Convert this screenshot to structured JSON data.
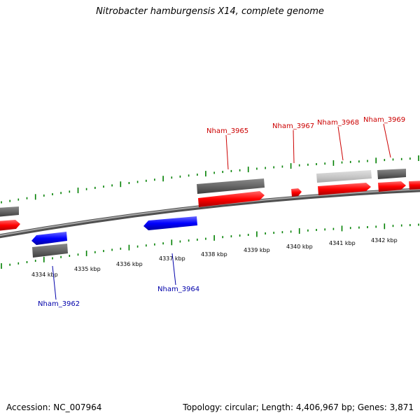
{
  "header": {
    "title": "Nitrobacter hamburgensis X14, complete genome"
  },
  "footer": {
    "accession_label": "Accession:",
    "accession": "NC_007964",
    "topology_label": "Topology:",
    "topology": "circular;",
    "length_label": "Length:",
    "length": "4,406,967 bp;",
    "genes_label": "Genes:",
    "genes": "3,871"
  },
  "colors": {
    "forward_gene": "#ff0000",
    "reverse_gene": "#0000ff",
    "forward_label": "#cc0000",
    "reverse_label": "#0000aa",
    "gray_feature": "#666666",
    "light_gray_feature": "#c8c8c8",
    "tick": "#008000",
    "backbone": "#808080"
  },
  "scale": {
    "ticks": [
      "4334 kbp",
      "4335 kbp",
      "4336 kbp",
      "4337 kbp",
      "4338 kbp",
      "4339 kbp",
      "4340 kbp",
      "4341 kbp",
      "4342 kbp"
    ]
  },
  "gene_labels": {
    "nham_3962": "Nham_3962",
    "nham_3964": "Nham_3964",
    "nham_3965": "Nham_3965",
    "nham_3967": "Nham_3967",
    "nham_3968": "Nham_3968",
    "nham_3969": "Nham_3969"
  }
}
